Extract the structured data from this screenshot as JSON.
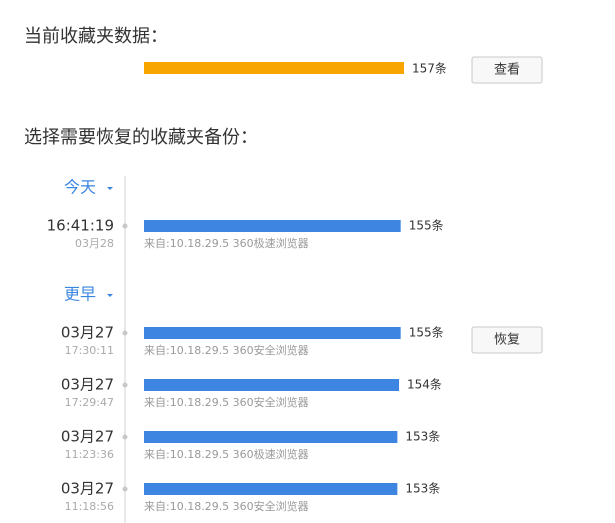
{
  "current": {
    "title": "当前收藏夹数据：",
    "value": 157,
    "value_label": "157条",
    "button": "查看"
  },
  "backups": {
    "title": "选择需要恢复的收藏夹备份：",
    "sections": [
      {
        "heading": "今天",
        "entries": [
          {
            "primary": "16:41:19",
            "secondary": "03月28",
            "value": 155,
            "value_label": "155条",
            "source": "来自:10.18.29.5 360极速浏览器"
          }
        ]
      },
      {
        "heading": "更早",
        "entries": [
          {
            "primary": "03月27",
            "secondary": "17:30:11",
            "value": 155,
            "value_label": "155条",
            "source": "来自:10.18.29.5 360安全浏览器",
            "button": "恢复"
          },
          {
            "primary": "03月27",
            "secondary": "17:29:47",
            "value": 154,
            "value_label": "154条",
            "source": "来自:10.18.29.5 360安全浏览器"
          },
          {
            "primary": "03月27",
            "secondary": "11:23:36",
            "value": 153,
            "value_label": "153条",
            "source": "来自:10.18.29.5 360极速浏览器"
          },
          {
            "primary": "03月27",
            "secondary": "11:18:56",
            "value": 153,
            "value_label": "153条",
            "source": "来自:10.18.29.5 360安全浏览器"
          }
        ]
      }
    ]
  }
}
